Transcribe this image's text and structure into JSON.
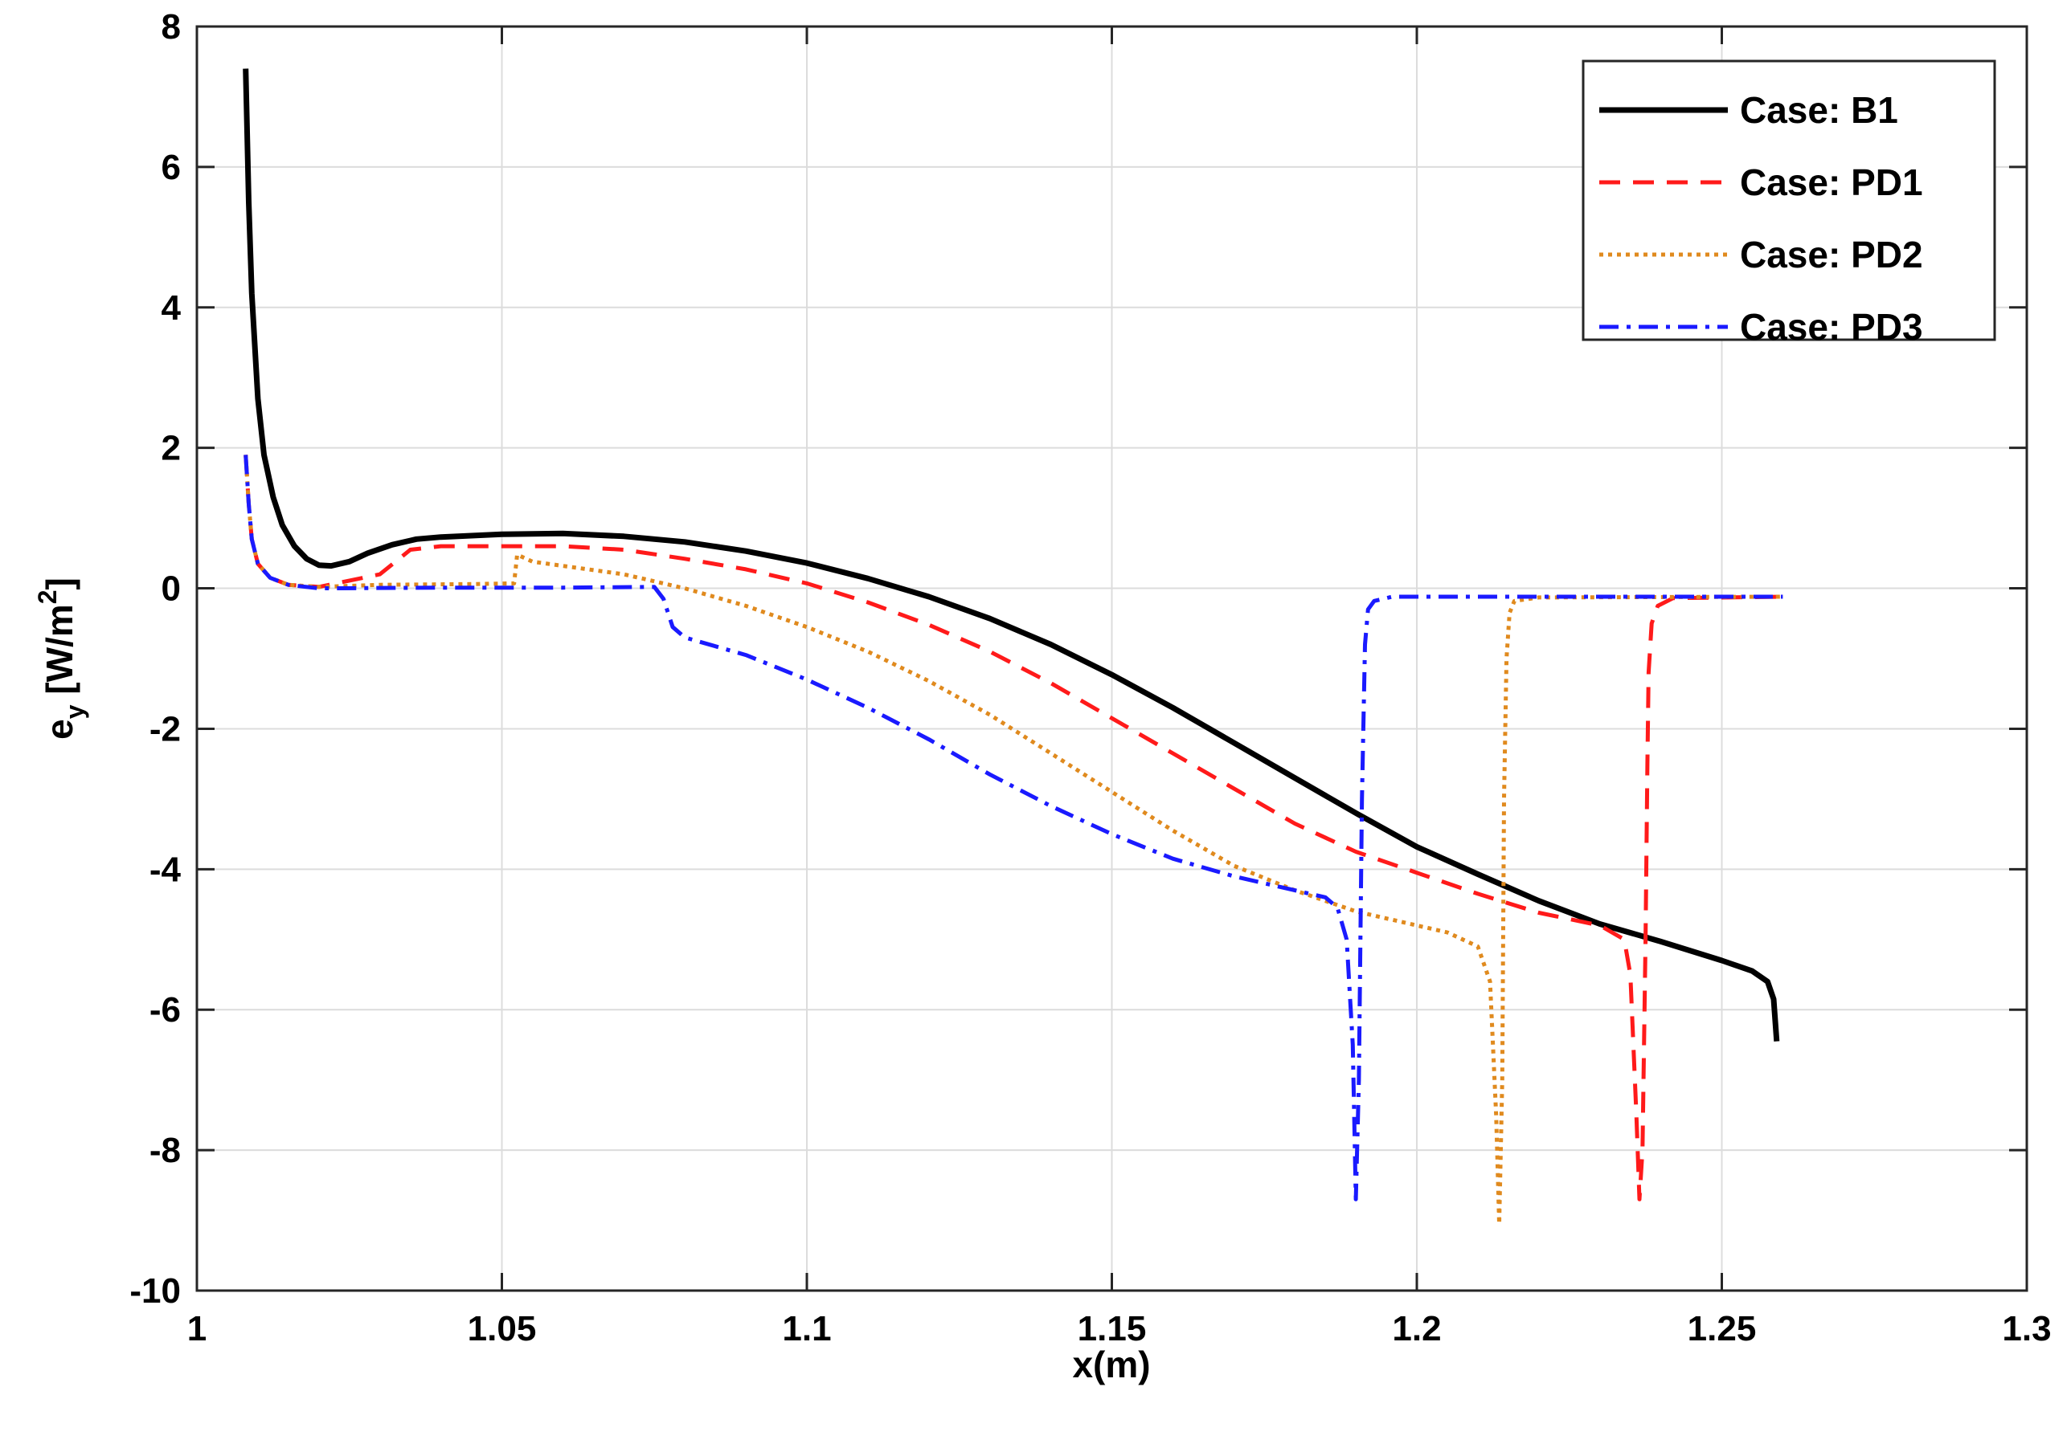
{
  "chart_data": {
    "type": "line",
    "title": "",
    "xlabel": "x(m)",
    "ylabel": {
      "base": "e",
      "sub": "y",
      "unit_pre": " [W/m",
      "sup": "2",
      "unit_post": "]"
    },
    "xlim": [
      1,
      1.3
    ],
    "ylim": [
      -10,
      8
    ],
    "xticks": [
      1,
      1.05,
      1.1,
      1.15,
      1.2,
      1.25,
      1.3
    ],
    "xtick_labels": [
      "1",
      "1.05",
      "1.1",
      "1.15",
      "1.2",
      "1.25",
      "1.3"
    ],
    "yticks": [
      -10,
      -8,
      -6,
      -4,
      -2,
      0,
      2,
      4,
      6,
      8
    ],
    "ytick_labels": [
      "-10",
      "-8",
      "-6",
      "-4",
      "-2",
      "0",
      "2",
      "4",
      "6",
      "8"
    ],
    "grid": true,
    "legend_position": "top-right",
    "series": [
      {
        "name": "Case: B1",
        "color": "#000000",
        "style": "solid",
        "points": [
          [
            1.008,
            7.4
          ],
          [
            1.0085,
            5.5
          ],
          [
            1.009,
            4.2
          ],
          [
            1.01,
            2.7
          ],
          [
            1.011,
            1.9
          ],
          [
            1.0125,
            1.3
          ],
          [
            1.014,
            0.9
          ],
          [
            1.016,
            0.6
          ],
          [
            1.018,
            0.42
          ],
          [
            1.02,
            0.33
          ],
          [
            1.022,
            0.32
          ],
          [
            1.025,
            0.38
          ],
          [
            1.028,
            0.5
          ],
          [
            1.032,
            0.62
          ],
          [
            1.036,
            0.7
          ],
          [
            1.04,
            0.73
          ],
          [
            1.045,
            0.75
          ],
          [
            1.05,
            0.77
          ],
          [
            1.06,
            0.78
          ],
          [
            1.07,
            0.74
          ],
          [
            1.08,
            0.66
          ],
          [
            1.09,
            0.53
          ],
          [
            1.1,
            0.36
          ],
          [
            1.11,
            0.14
          ],
          [
            1.12,
            -0.12
          ],
          [
            1.13,
            -0.43
          ],
          [
            1.14,
            -0.8
          ],
          [
            1.15,
            -1.23
          ],
          [
            1.16,
            -1.7
          ],
          [
            1.17,
            -2.2
          ],
          [
            1.18,
            -2.7
          ],
          [
            1.19,
            -3.2
          ],
          [
            1.2,
            -3.68
          ],
          [
            1.21,
            -4.07
          ],
          [
            1.22,
            -4.45
          ],
          [
            1.23,
            -4.78
          ],
          [
            1.24,
            -5.03
          ],
          [
            1.25,
            -5.3
          ],
          [
            1.255,
            -5.45
          ],
          [
            1.2575,
            -5.6
          ],
          [
            1.2585,
            -5.85
          ],
          [
            1.259,
            -6.45
          ]
        ]
      },
      {
        "name": "Case: PD1",
        "color": "#ff1a1a",
        "style": "dashed",
        "points": [
          [
            1.008,
            1.9
          ],
          [
            1.0085,
            1.2
          ],
          [
            1.009,
            0.7
          ],
          [
            1.01,
            0.35
          ],
          [
            1.012,
            0.15
          ],
          [
            1.015,
            0.05
          ],
          [
            1.02,
            0.02
          ],
          [
            1.03,
            0.2
          ],
          [
            1.035,
            0.55
          ],
          [
            1.04,
            0.6
          ],
          [
            1.05,
            0.6
          ],
          [
            1.06,
            0.6
          ],
          [
            1.07,
            0.55
          ],
          [
            1.08,
            0.42
          ],
          [
            1.09,
            0.27
          ],
          [
            1.1,
            0.07
          ],
          [
            1.11,
            -0.2
          ],
          [
            1.12,
            -0.52
          ],
          [
            1.13,
            -0.9
          ],
          [
            1.14,
            -1.35
          ],
          [
            1.15,
            -1.85
          ],
          [
            1.16,
            -2.35
          ],
          [
            1.17,
            -2.85
          ],
          [
            1.18,
            -3.35
          ],
          [
            1.19,
            -3.75
          ],
          [
            1.2,
            -4.05
          ],
          [
            1.21,
            -4.35
          ],
          [
            1.22,
            -4.62
          ],
          [
            1.23,
            -4.8
          ],
          [
            1.234,
            -5.0
          ],
          [
            1.235,
            -5.5
          ],
          [
            1.236,
            -7.5
          ],
          [
            1.2365,
            -8.7
          ],
          [
            1.237,
            -8.0
          ],
          [
            1.2375,
            -5.0
          ],
          [
            1.2378,
            -2.5
          ],
          [
            1.238,
            -1.2
          ],
          [
            1.2385,
            -0.5
          ],
          [
            1.2395,
            -0.25
          ],
          [
            1.242,
            -0.14
          ],
          [
            1.26,
            -0.12
          ]
        ]
      },
      {
        "name": "Case: PD2",
        "color": "#e08a1e",
        "style": "dotted",
        "points": [
          [
            1.008,
            1.9
          ],
          [
            1.0085,
            1.2
          ],
          [
            1.009,
            0.7
          ],
          [
            1.01,
            0.35
          ],
          [
            1.012,
            0.15
          ],
          [
            1.015,
            0.05
          ],
          [
            1.02,
            0.02
          ],
          [
            1.03,
            0.05
          ],
          [
            1.045,
            0.06
          ],
          [
            1.052,
            0.07
          ],
          [
            1.0525,
            0.48
          ],
          [
            1.055,
            0.38
          ],
          [
            1.06,
            0.32
          ],
          [
            1.07,
            0.2
          ],
          [
            1.08,
            0.0
          ],
          [
            1.09,
            -0.25
          ],
          [
            1.1,
            -0.55
          ],
          [
            1.11,
            -0.9
          ],
          [
            1.12,
            -1.32
          ],
          [
            1.13,
            -1.8
          ],
          [
            1.14,
            -2.35
          ],
          [
            1.15,
            -2.9
          ],
          [
            1.16,
            -3.45
          ],
          [
            1.17,
            -3.95
          ],
          [
            1.18,
            -4.3
          ],
          [
            1.19,
            -4.6
          ],
          [
            1.2,
            -4.8
          ],
          [
            1.205,
            -4.9
          ],
          [
            1.21,
            -5.1
          ],
          [
            1.212,
            -5.6
          ],
          [
            1.213,
            -7.5
          ],
          [
            1.2135,
            -9.05
          ],
          [
            1.214,
            -7.0
          ],
          [
            1.2143,
            -3.0
          ],
          [
            1.2147,
            -1.0
          ],
          [
            1.2152,
            -0.35
          ],
          [
            1.216,
            -0.18
          ],
          [
            1.22,
            -0.13
          ],
          [
            1.26,
            -0.12
          ]
        ]
      },
      {
        "name": "Case: PD3",
        "color": "#1a1aff",
        "style": "dashdot",
        "points": [
          [
            1.008,
            1.9
          ],
          [
            1.0085,
            1.2
          ],
          [
            1.009,
            0.7
          ],
          [
            1.01,
            0.35
          ],
          [
            1.012,
            0.15
          ],
          [
            1.015,
            0.05
          ],
          [
            1.02,
            0.0
          ],
          [
            1.04,
            0.01
          ],
          [
            1.06,
            0.01
          ],
          [
            1.075,
            0.02
          ],
          [
            1.0765,
            -0.15
          ],
          [
            1.078,
            -0.55
          ],
          [
            1.08,
            -0.7
          ],
          [
            1.09,
            -0.95
          ],
          [
            1.1,
            -1.3
          ],
          [
            1.11,
            -1.7
          ],
          [
            1.12,
            -2.15
          ],
          [
            1.13,
            -2.65
          ],
          [
            1.14,
            -3.1
          ],
          [
            1.15,
            -3.5
          ],
          [
            1.16,
            -3.85
          ],
          [
            1.17,
            -4.1
          ],
          [
            1.18,
            -4.3
          ],
          [
            1.185,
            -4.4
          ],
          [
            1.187,
            -4.55
          ],
          [
            1.1885,
            -5.0
          ],
          [
            1.1895,
            -6.5
          ],
          [
            1.19,
            -8.7
          ],
          [
            1.1905,
            -7.0
          ],
          [
            1.191,
            -3.0
          ],
          [
            1.1915,
            -0.8
          ],
          [
            1.192,
            -0.3
          ],
          [
            1.193,
            -0.18
          ],
          [
            1.196,
            -0.12
          ],
          [
            1.26,
            -0.12
          ]
        ]
      }
    ]
  }
}
